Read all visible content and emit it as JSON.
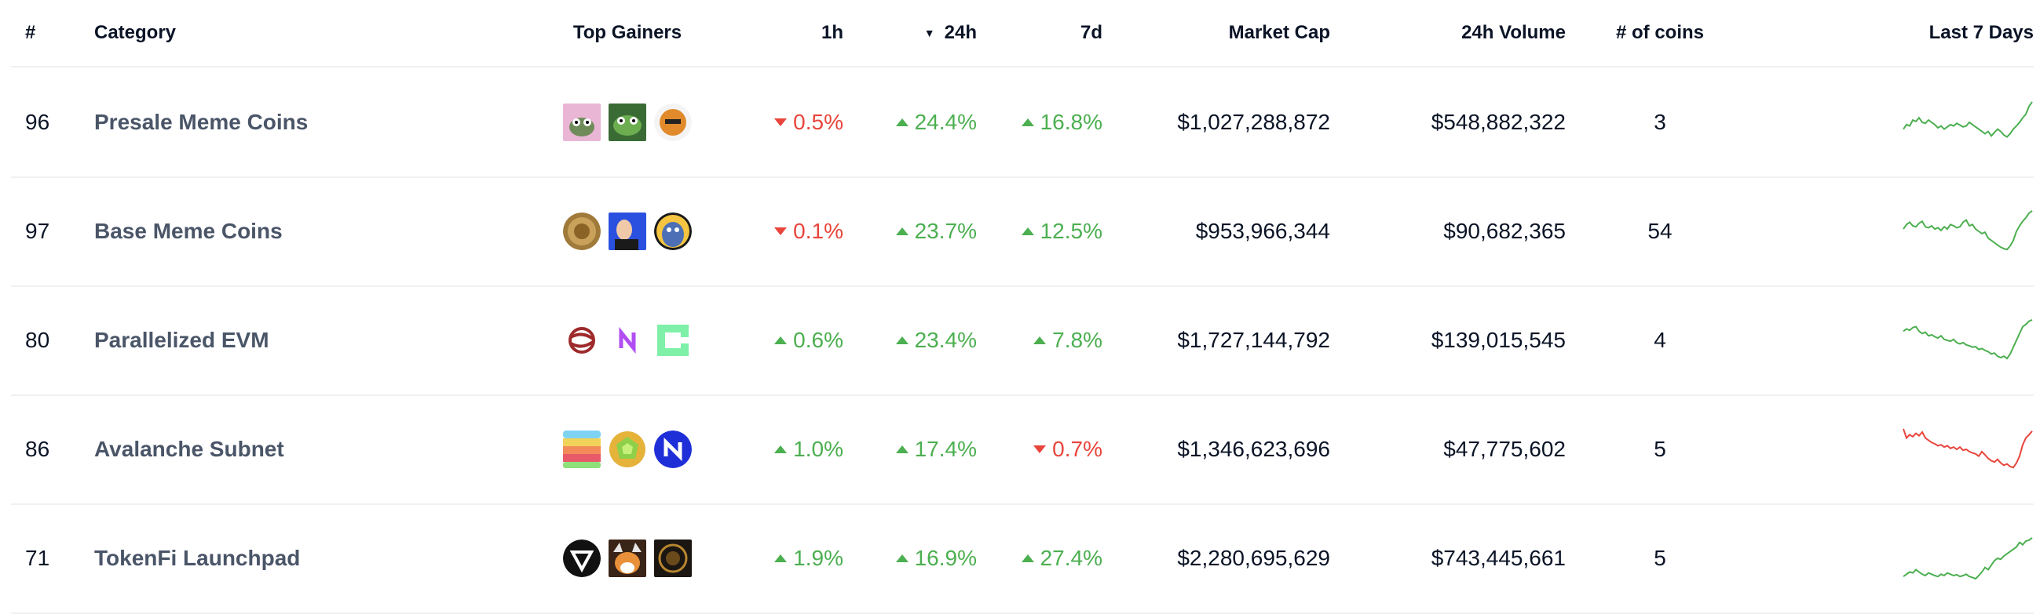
{
  "columns": {
    "rank": "#",
    "category": "Category",
    "top_gainers": "Top Gainers",
    "h1": "1h",
    "h24": "24h",
    "d7": "7d",
    "market_cap": "Market Cap",
    "volume": "24h Volume",
    "coins": "# of coins",
    "spark": "Last 7 Days",
    "sort_arrow": "▼"
  },
  "colors": {
    "up": "#4caf50",
    "down": "#e8453c",
    "text": "#0b1426",
    "category_text": "#4a5568"
  },
  "rows": [
    {
      "rank": "96",
      "category": "Presale Meme Coins",
      "h1": "0.5%",
      "h1_dir": "down",
      "h24": "24.4%",
      "h24_dir": "up",
      "d7": "16.8%",
      "d7_dir": "up",
      "market_cap": "$1,027,288,872",
      "volume": "$548,882,322",
      "coins": "3",
      "gainer_icons": [
        "pepe-frog-pink-icon",
        "pepe-frog-green-icon",
        "doge-meme-icon"
      ],
      "spark_trend": "up",
      "spark": [
        0.35,
        0.45,
        0.42,
        0.55,
        0.52,
        0.6,
        0.5,
        0.48,
        0.55,
        0.5,
        0.45,
        0.38,
        0.42,
        0.35,
        0.4,
        0.45,
        0.42,
        0.48,
        0.44,
        0.4,
        0.42,
        0.5,
        0.45,
        0.4,
        0.35,
        0.3,
        0.25,
        0.3,
        0.2,
        0.28,
        0.35,
        0.3,
        0.22,
        0.18,
        0.25,
        0.35,
        0.42,
        0.5,
        0.6,
        0.68,
        0.85,
        0.95
      ]
    },
    {
      "rank": "97",
      "category": "Base Meme Coins",
      "h1": "0.1%",
      "h1_dir": "down",
      "h24": "23.7%",
      "h24_dir": "up",
      "d7": "12.5%",
      "d7_dir": "up",
      "market_cap": "$953,966,344",
      "volume": "$90,682,365",
      "coins": "54",
      "gainer_icons": [
        "coin-gold-icon",
        "chad-meme-icon",
        "blue-character-icon"
      ],
      "spark_trend": "up",
      "spark": [
        0.55,
        0.65,
        0.7,
        0.62,
        0.6,
        0.68,
        0.72,
        0.6,
        0.58,
        0.62,
        0.55,
        0.58,
        0.52,
        0.6,
        0.55,
        0.65,
        0.62,
        0.58,
        0.6,
        0.7,
        0.75,
        0.62,
        0.65,
        0.55,
        0.5,
        0.45,
        0.48,
        0.35,
        0.3,
        0.25,
        0.2,
        0.15,
        0.12,
        0.1,
        0.18,
        0.3,
        0.5,
        0.62,
        0.72,
        0.8,
        0.9,
        0.95
      ]
    },
    {
      "rank": "80",
      "category": "Parallelized EVM",
      "h1": "0.6%",
      "h1_dir": "up",
      "h24": "23.4%",
      "h24_dir": "up",
      "d7": "7.8%",
      "d7_dir": "up",
      "market_cap": "$1,727,144,792",
      "volume": "$139,015,545",
      "coins": "4",
      "gainer_icons": [
        "sei-icon",
        "monad-n-icon",
        "pixel-frame-icon"
      ],
      "spark_trend": "up",
      "spark": [
        0.7,
        0.75,
        0.72,
        0.78,
        0.8,
        0.7,
        0.65,
        0.68,
        0.6,
        0.62,
        0.58,
        0.55,
        0.6,
        0.52,
        0.5,
        0.48,
        0.52,
        0.45,
        0.42,
        0.45,
        0.4,
        0.38,
        0.35,
        0.36,
        0.3,
        0.32,
        0.28,
        0.25,
        0.2,
        0.22,
        0.15,
        0.12,
        0.15,
        0.1,
        0.2,
        0.35,
        0.5,
        0.65,
        0.8,
        0.85,
        0.92,
        0.95
      ]
    },
    {
      "rank": "86",
      "category": "Avalanche Subnet",
      "h1": "1.0%",
      "h1_dir": "up",
      "h24": "17.4%",
      "h24_dir": "up",
      "d7": "0.7%",
      "d7_dir": "down",
      "market_cap": "$1,346,623,696",
      "volume": "$47,775,602",
      "coins": "5",
      "gainer_icons": [
        "rainbow-stack-icon",
        "green-gem-icon",
        "navy-n-icon"
      ],
      "spark_trend": "down",
      "spark": [
        0.95,
        0.75,
        0.82,
        0.78,
        0.85,
        0.8,
        0.88,
        0.75,
        0.7,
        0.65,
        0.62,
        0.58,
        0.6,
        0.55,
        0.58,
        0.52,
        0.55,
        0.5,
        0.55,
        0.48,
        0.5,
        0.45,
        0.42,
        0.4,
        0.35,
        0.45,
        0.38,
        0.3,
        0.25,
        0.22,
        0.28,
        0.2,
        0.15,
        0.18,
        0.12,
        0.1,
        0.2,
        0.35,
        0.6,
        0.75,
        0.82,
        0.9
      ]
    },
    {
      "rank": "71",
      "category": "TokenFi Launchpad",
      "h1": "1.9%",
      "h1_dir": "up",
      "h24": "16.9%",
      "h24_dir": "up",
      "d7": "27.4%",
      "d7_dir": "up",
      "market_cap": "$2,280,695,629",
      "volume": "$743,445,661",
      "coins": "5",
      "gainer_icons": [
        "tokenfi-icon",
        "shiba-viking-icon",
        "dark-coin-icon"
      ],
      "spark_trend": "up",
      "spark": [
        0.1,
        0.15,
        0.2,
        0.18,
        0.25,
        0.2,
        0.15,
        0.12,
        0.18,
        0.15,
        0.12,
        0.1,
        0.15,
        0.12,
        0.18,
        0.15,
        0.12,
        0.14,
        0.1,
        0.12,
        0.15,
        0.1,
        0.08,
        0.05,
        0.12,
        0.2,
        0.3,
        0.25,
        0.35,
        0.45,
        0.5,
        0.48,
        0.55,
        0.6,
        0.65,
        0.7,
        0.75,
        0.85,
        0.8,
        0.88,
        0.9,
        0.95
      ]
    }
  ]
}
